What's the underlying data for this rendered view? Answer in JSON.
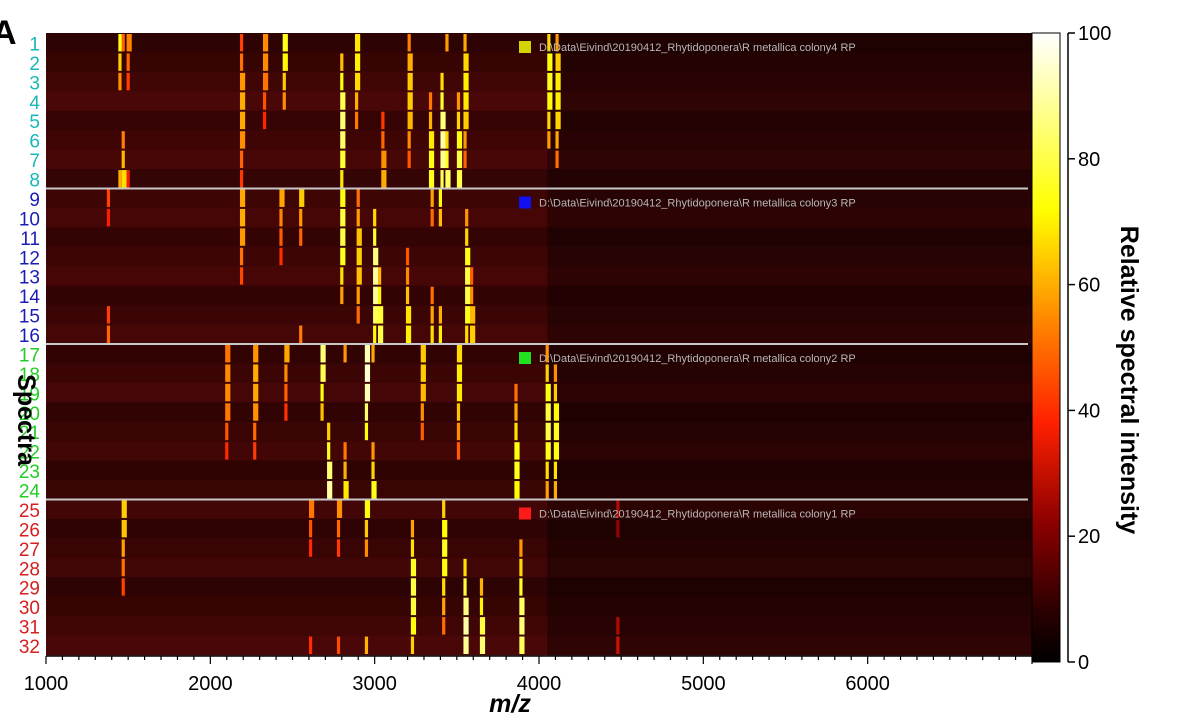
{
  "chart_data": {
    "type": "heatmap",
    "panel_letter": "A",
    "xlabel": "m/z",
    "xlim": [
      1000,
      7000
    ],
    "x_ticks": [
      "1000",
      "2000",
      "3000",
      "4000",
      "5000",
      "6000"
    ],
    "ylabel": "Spectra",
    "colorbar": {
      "title": "Relative spectral intensity",
      "range": [
        0,
        100
      ],
      "ticks": [
        "0",
        "20",
        "40",
        "60",
        "80",
        "100"
      ],
      "colormap": [
        "#000000",
        "#330000",
        "#8b0000",
        "#ff2000",
        "#ff8c00",
        "#ffff00",
        "#ffffff"
      ]
    },
    "groups": [
      {
        "caption": "D:\\Data\\Eivind\\20190412_Rhytidoponera\\R metallica colony4 RP",
        "marker_color": "#d4d400",
        "label_color": "#18b8b8",
        "rows": [
          "1",
          "2",
          "3",
          "4",
          "5",
          "6",
          "7",
          "8"
        ]
      },
      {
        "caption": "D:\\Data\\Eivind\\20190412_Rhytidoponera\\R metallica colony3 RP",
        "marker_color": "#1010f0",
        "label_color": "#1c1cb4",
        "rows": [
          "9",
          "10",
          "11",
          "12",
          "13",
          "14",
          "15",
          "16"
        ]
      },
      {
        "caption": "D:\\Data\\Eivind\\20190412_Rhytidoponera\\R metallica colony2 RP",
        "marker_color": "#20e020",
        "label_color": "#22cc22",
        "rows": [
          "17",
          "18",
          "19",
          "20",
          "21",
          "22",
          "23",
          "24"
        ]
      },
      {
        "caption": "D:\\Data\\Eivind\\20190412_Rhytidoponera\\R metallica colony1 RP",
        "marker_color": "#ff1a1a",
        "label_color": "#d42020",
        "rows": [
          "25",
          "26",
          "27",
          "28",
          "29",
          "30",
          "31",
          "32"
        ]
      }
    ],
    "peaks": [
      {
        "group": 0,
        "mz": 1450,
        "intensity": 80
      },
      {
        "group": 0,
        "mz": 1470,
        "intensity": 70
      },
      {
        "group": 0,
        "mz": 1500,
        "intensity": 55
      },
      {
        "group": 0,
        "mz": 2190,
        "intensity": 60
      },
      {
        "group": 0,
        "mz": 2330,
        "intensity": 55
      },
      {
        "group": 0,
        "mz": 2450,
        "intensity": 75
      },
      {
        "group": 0,
        "mz": 2800,
        "intensity": 85
      },
      {
        "group": 0,
        "mz": 2890,
        "intensity": 70
      },
      {
        "group": 0,
        "mz": 3050,
        "intensity": 60
      },
      {
        "group": 0,
        "mz": 3210,
        "intensity": 65
      },
      {
        "group": 0,
        "mz": 3340,
        "intensity": 75
      },
      {
        "group": 0,
        "mz": 3410,
        "intensity": 90
      },
      {
        "group": 0,
        "mz": 3440,
        "intensity": 85
      },
      {
        "group": 0,
        "mz": 3510,
        "intensity": 80
      },
      {
        "group": 0,
        "mz": 3550,
        "intensity": 70
      },
      {
        "group": 0,
        "mz": 4060,
        "intensity": 75
      },
      {
        "group": 0,
        "mz": 4110,
        "intensity": 70
      },
      {
        "group": 1,
        "mz": 1380,
        "intensity": 55
      },
      {
        "group": 1,
        "mz": 2190,
        "intensity": 60
      },
      {
        "group": 1,
        "mz": 2430,
        "intensity": 60
      },
      {
        "group": 1,
        "mz": 2550,
        "intensity": 70
      },
      {
        "group": 1,
        "mz": 2800,
        "intensity": 80
      },
      {
        "group": 1,
        "mz": 2900,
        "intensity": 65
      },
      {
        "group": 1,
        "mz": 3000,
        "intensity": 90
      },
      {
        "group": 1,
        "mz": 3030,
        "intensity": 80
      },
      {
        "group": 1,
        "mz": 3200,
        "intensity": 70
      },
      {
        "group": 1,
        "mz": 3350,
        "intensity": 75
      },
      {
        "group": 1,
        "mz": 3400,
        "intensity": 85
      },
      {
        "group": 1,
        "mz": 3560,
        "intensity": 80
      },
      {
        "group": 1,
        "mz": 3590,
        "intensity": 65
      },
      {
        "group": 2,
        "mz": 2100,
        "intensity": 55
      },
      {
        "group": 2,
        "mz": 2270,
        "intensity": 60
      },
      {
        "group": 2,
        "mz": 2460,
        "intensity": 60
      },
      {
        "group": 2,
        "mz": 2680,
        "intensity": 85
      },
      {
        "group": 2,
        "mz": 2720,
        "intensity": 90
      },
      {
        "group": 2,
        "mz": 2820,
        "intensity": 75
      },
      {
        "group": 2,
        "mz": 2950,
        "intensity": 95
      },
      {
        "group": 2,
        "mz": 2990,
        "intensity": 80
      },
      {
        "group": 2,
        "mz": 3290,
        "intensity": 65
      },
      {
        "group": 2,
        "mz": 3510,
        "intensity": 70
      },
      {
        "group": 2,
        "mz": 3860,
        "intensity": 75
      },
      {
        "group": 2,
        "mz": 4050,
        "intensity": 80
      },
      {
        "group": 2,
        "mz": 4100,
        "intensity": 75
      },
      {
        "group": 3,
        "mz": 1470,
        "intensity": 65
      },
      {
        "group": 3,
        "mz": 2610,
        "intensity": 55
      },
      {
        "group": 3,
        "mz": 2780,
        "intensity": 60
      },
      {
        "group": 3,
        "mz": 2950,
        "intensity": 80
      },
      {
        "group": 3,
        "mz": 3230,
        "intensity": 80
      },
      {
        "group": 3,
        "mz": 3420,
        "intensity": 75
      },
      {
        "group": 3,
        "mz": 3550,
        "intensity": 90
      },
      {
        "group": 3,
        "mz": 3650,
        "intensity": 85
      },
      {
        "group": 3,
        "mz": 3890,
        "intensity": 85
      },
      {
        "group": 3,
        "mz": 4480,
        "intensity": 35
      }
    ]
  }
}
